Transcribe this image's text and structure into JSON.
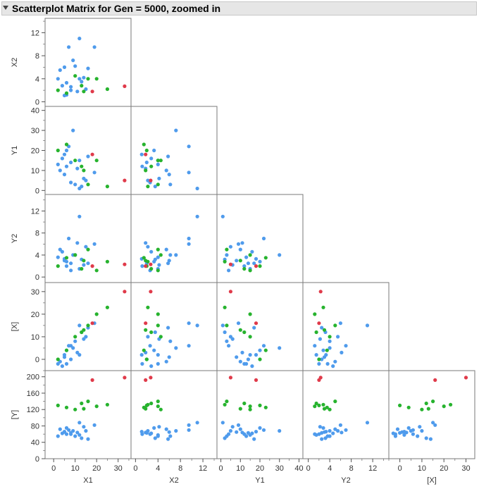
{
  "window": {
    "title": "Scatterplot Matrix for Gen = 5000, zoomed in"
  },
  "colors": {
    "blue": "#4f9bec",
    "green": "#27b32e",
    "red": "#e03a4a",
    "frame": "#7a7a7a",
    "axis": "#555555",
    "text": "#333333"
  },
  "chart_data": {
    "type": "scatter",
    "variables": [
      "X1",
      "X2",
      "Y1",
      "Y2",
      "[X]",
      "[Y]"
    ],
    "axes": {
      "X1": {
        "range": [
          -4,
          36
        ],
        "ticks": [
          0,
          10,
          20,
          30
        ]
      },
      "X2": {
        "range": [
          -0.8,
          14.5
        ],
        "ticks": [
          0,
          4,
          8,
          12
        ],
        "ticks_row": [
          0,
          4,
          8,
          12
        ]
      },
      "Y1": {
        "range": [
          -2,
          42
        ],
        "ticks": [
          0,
          10,
          20,
          30,
          40
        ]
      },
      "Y2": {
        "range": [
          -1,
          15
        ],
        "ticks": [
          0,
          4,
          8,
          12
        ]
      },
      "[X]": {
        "range": [
          -5,
          34
        ],
        "ticks": [
          0,
          10,
          20,
          30
        ]
      },
      "[Y]": {
        "range": [
          0,
          215
        ],
        "ticks": [
          0,
          40,
          80,
          120,
          160,
          200
        ]
      }
    },
    "groups": [
      {
        "color": "blue",
        "points": [
          [
            6,
            1.2,
            12,
            2,
            -2,
            60
          ],
          [
            8,
            2,
            14,
            2.5,
            0,
            63
          ],
          [
            12,
            4,
            15,
            1.5,
            2,
            58
          ],
          [
            3,
            5.5,
            10,
            5,
            -1,
            72
          ],
          [
            5,
            6,
            8,
            3,
            1,
            65
          ],
          [
            7,
            9.5,
            22,
            7,
            6,
            70
          ],
          [
            10,
            6.2,
            3,
            4,
            8,
            55
          ],
          [
            13,
            3.5,
            2,
            3.2,
            12,
            50
          ],
          [
            15,
            2.2,
            5,
            5.5,
            10,
            68
          ],
          [
            19,
            9.5,
            9,
            6,
            16,
            82
          ],
          [
            12,
            11,
            1,
            11,
            15,
            88
          ],
          [
            4,
            2.8,
            16,
            4.6,
            -3,
            62
          ],
          [
            6,
            3.3,
            20,
            2.8,
            4,
            75
          ],
          [
            9,
            7.2,
            30,
            4,
            5,
            68
          ],
          [
            2,
            4,
            13,
            3.6,
            -2,
            55
          ],
          [
            16,
            5.8,
            17,
            2.5,
            14,
            48
          ],
          [
            11,
            1.8,
            11,
            6.2,
            3,
            64
          ],
          [
            14,
            4.2,
            6,
            2.2,
            9,
            78
          ],
          [
            8,
            2.6,
            4,
            1.2,
            6,
            60
          ],
          [
            5,
            1.1,
            18,
            3.3,
            2,
            66
          ]
        ]
      },
      {
        "color": "green",
        "points": [
          [
            2,
            2,
            20,
            2,
            0,
            130
          ],
          [
            6,
            1.5,
            23,
            3.5,
            4,
            125
          ],
          [
            10,
            4.5,
            15,
            4,
            10,
            120
          ],
          [
            13,
            2.8,
            12,
            1.5,
            12,
            135
          ],
          [
            16,
            4,
            3,
            5,
            15,
            140
          ],
          [
            25,
            2.2,
            2,
            2.8,
            23,
            132
          ],
          [
            20,
            4,
            15,
            1.2,
            20,
            128
          ],
          [
            14,
            1.8,
            10,
            3,
            13,
            122
          ]
        ]
      },
      {
        "color": "red",
        "points": [
          [
            18,
            1.8,
            18,
            2,
            16,
            192
          ],
          [
            33,
            2.7,
            5,
            2.3,
            30,
            198
          ]
        ]
      }
    ]
  }
}
